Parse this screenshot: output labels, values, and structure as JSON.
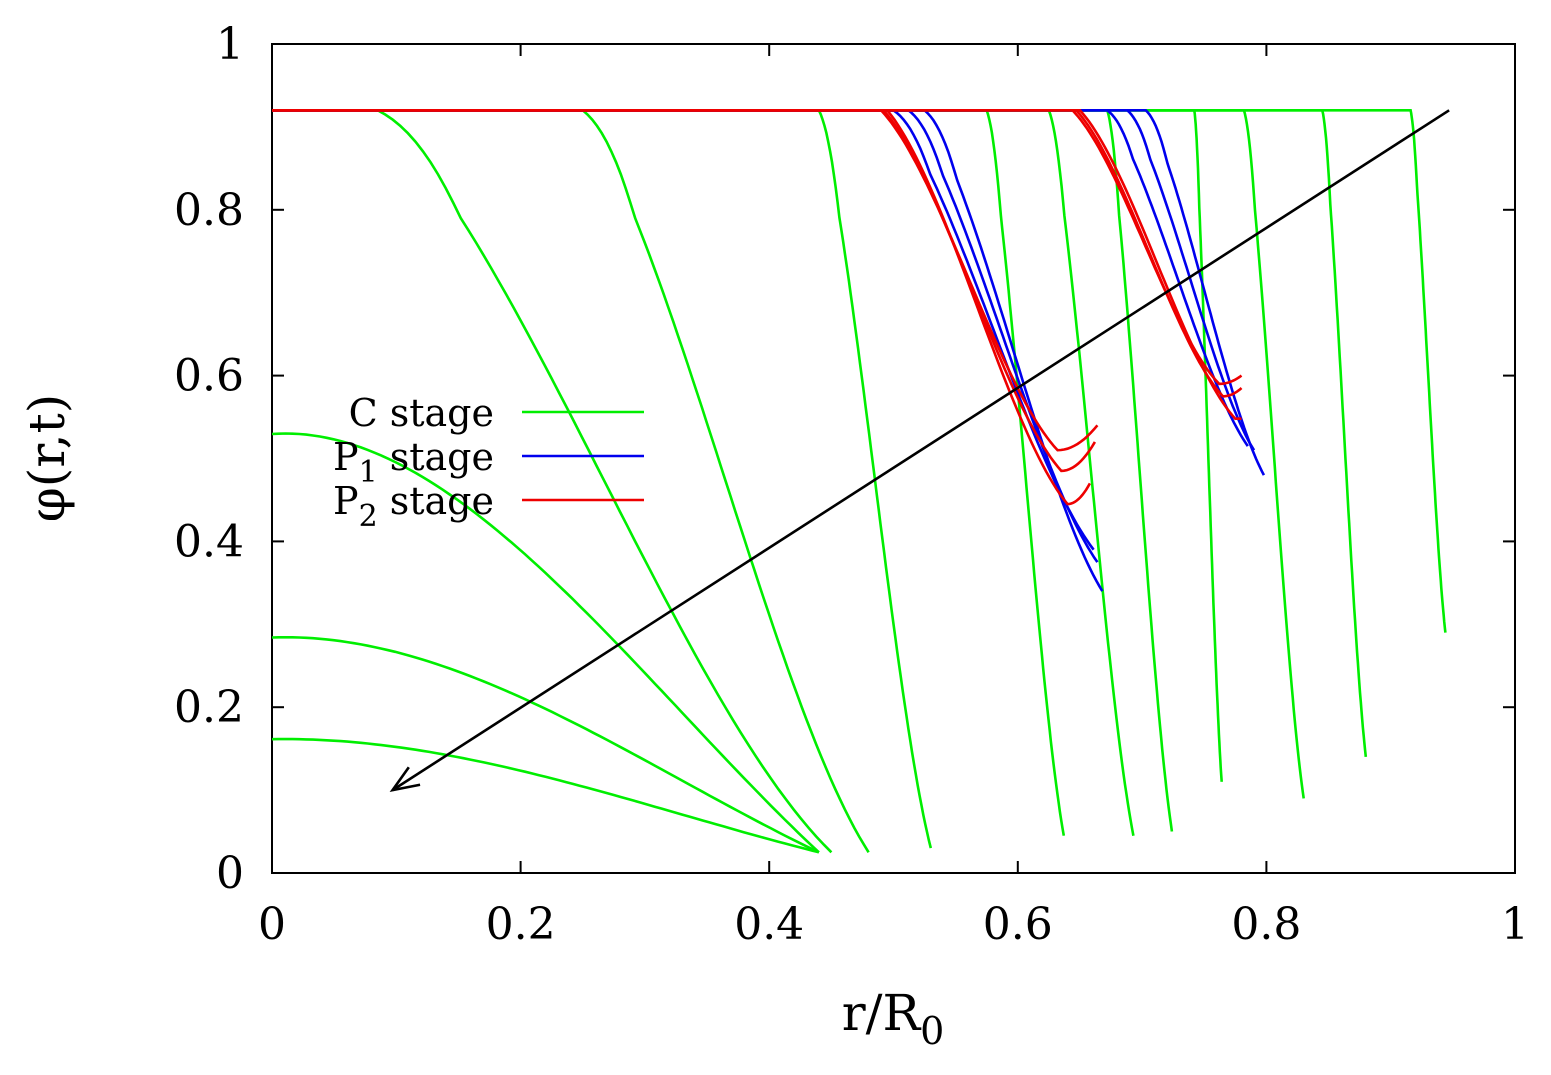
{
  "chart_data": {
    "type": "line",
    "title": "",
    "xlabel": "r/R",
    "xlabel_sub": "0",
    "ylabel": "φ(r,t)",
    "xlim": [
      0,
      1
    ],
    "ylim": [
      0,
      1
    ],
    "xticks": [
      0,
      0.2,
      0.4,
      0.6,
      0.8,
      1
    ],
    "xtick_labels": [
      "0",
      "0.2",
      "0.4",
      "0.6",
      "0.8",
      "1"
    ],
    "yticks": [
      0,
      0.2,
      0.4,
      0.6,
      0.8,
      1
    ],
    "ytick_labels": [
      "0",
      "0.2",
      "0.4",
      "0.6",
      "0.8",
      "1"
    ],
    "legend_position": "left",
    "legend": [
      {
        "prefix": "C",
        "sub": "",
        "suffix": " stage",
        "color": "#00ee00"
      },
      {
        "prefix": "P",
        "sub": "1",
        "suffix": " stage",
        "color": "#0000ee"
      },
      {
        "prefix": "P",
        "sub": "2",
        "suffix": " stage",
        "color": "#ee0000"
      }
    ],
    "arrow": {
      "from": [
        0.947,
        0.92
      ],
      "to": [
        0.097,
        0.1
      ],
      "color": "#000000",
      "meaning": "direction of time"
    },
    "series": [
      {
        "name": "C stage",
        "color": "#00ee00",
        "kind": "dome",
        "plateau": 0.58,
        "end": [
          0.44,
          0.025
        ]
      },
      {
        "name": "C stage",
        "color": "#00ee00",
        "kind": "dome",
        "plateau": 0.31,
        "end": [
          0.44,
          0.025
        ]
      },
      {
        "name": "C stage",
        "color": "#00ee00",
        "kind": "dome",
        "plateau": 0.175,
        "end": [
          0.44,
          0.025
        ]
      },
      {
        "name": "C stage",
        "color": "#00ee00",
        "kind": "front",
        "plateau": 0.92,
        "knee": 0.085,
        "end": [
          0.45,
          0.025
        ]
      },
      {
        "name": "C stage",
        "color": "#00ee00",
        "kind": "front",
        "plateau": 0.92,
        "knee": 0.25,
        "end": [
          0.48,
          0.025
        ]
      },
      {
        "name": "C stage",
        "color": "#00ee00",
        "kind": "front",
        "plateau": 0.92,
        "knee": 0.44,
        "end": [
          0.53,
          0.03
        ]
      },
      {
        "name": "C stage",
        "color": "#00ee00",
        "kind": "front",
        "plateau": 0.92,
        "knee": 0.575,
        "end": [
          0.637,
          0.045
        ]
      },
      {
        "name": "C stage",
        "color": "#00ee00",
        "kind": "front",
        "plateau": 0.92,
        "knee": 0.625,
        "end": [
          0.693,
          0.045
        ]
      },
      {
        "name": "C stage",
        "color": "#00ee00",
        "kind": "front",
        "plateau": 0.92,
        "knee": 0.672,
        "end": [
          0.724,
          0.05
        ]
      },
      {
        "name": "C stage",
        "color": "#00ee00",
        "kind": "front",
        "plateau": 0.92,
        "knee": 0.742,
        "end": [
          0.764,
          0.11
        ]
      },
      {
        "name": "C stage",
        "color": "#00ee00",
        "kind": "front",
        "plateau": 0.92,
        "knee": 0.782,
        "end": [
          0.83,
          0.09
        ]
      },
      {
        "name": "C stage",
        "color": "#00ee00",
        "kind": "front",
        "plateau": 0.92,
        "knee": 0.845,
        "end": [
          0.88,
          0.14
        ]
      },
      {
        "name": "C stage",
        "color": "#00ee00",
        "kind": "front",
        "plateau": 0.92,
        "knee": 0.916,
        "end": [
          0.944,
          0.29
        ]
      },
      {
        "name": "P1 stage",
        "color": "#0000ee",
        "kind": "front",
        "plateau": 0.92,
        "knee": 0.5,
        "end": [
          0.661,
          0.39
        ]
      },
      {
        "name": "P1 stage",
        "color": "#0000ee",
        "kind": "front",
        "plateau": 0.92,
        "knee": 0.512,
        "end": [
          0.664,
          0.375
        ]
      },
      {
        "name": "P1 stage",
        "color": "#0000ee",
        "kind": "front",
        "plateau": 0.92,
        "knee": 0.525,
        "end": [
          0.668,
          0.34
        ]
      },
      {
        "name": "P1 stage",
        "color": "#0000ee",
        "kind": "front",
        "plateau": 0.92,
        "knee": 0.672,
        "end": [
          0.785,
          0.515
        ]
      },
      {
        "name": "P1 stage",
        "color": "#0000ee",
        "kind": "front",
        "plateau": 0.92,
        "knee": 0.688,
        "end": [
          0.79,
          0.51
        ]
      },
      {
        "name": "P1 stage",
        "color": "#0000ee",
        "kind": "front",
        "plateau": 0.92,
        "knee": 0.703,
        "end": [
          0.798,
          0.48
        ]
      },
      {
        "name": "P2 stage",
        "color": "#ee0000",
        "kind": "dip",
        "plateau": 0.92,
        "knee": 0.49,
        "min": [
          0.632,
          0.51
        ],
        "end": [
          0.664,
          0.54
        ]
      },
      {
        "name": "P2 stage",
        "color": "#ee0000",
        "kind": "dip",
        "plateau": 0.92,
        "knee": 0.492,
        "min": [
          0.635,
          0.485
        ],
        "end": [
          0.662,
          0.52
        ]
      },
      {
        "name": "P2 stage",
        "color": "#ee0000",
        "kind": "dip",
        "plateau": 0.92,
        "knee": 0.495,
        "min": [
          0.64,
          0.445
        ],
        "end": [
          0.658,
          0.47
        ]
      },
      {
        "name": "P2 stage",
        "color": "#ee0000",
        "kind": "dip",
        "plateau": 0.92,
        "knee": 0.644,
        "min": [
          0.762,
          0.59
        ],
        "end": [
          0.78,
          0.6
        ]
      },
      {
        "name": "P2 stage",
        "color": "#ee0000",
        "kind": "dip",
        "plateau": 0.92,
        "knee": 0.647,
        "min": [
          0.765,
          0.575
        ],
        "end": [
          0.78,
          0.585
        ]
      },
      {
        "name": "P2 stage",
        "color": "#ee0000",
        "kind": "dip",
        "plateau": 0.92,
        "knee": 0.65,
        "min": [
          0.775,
          0.548
        ],
        "end": [
          0.78,
          0.548
        ]
      }
    ]
  }
}
